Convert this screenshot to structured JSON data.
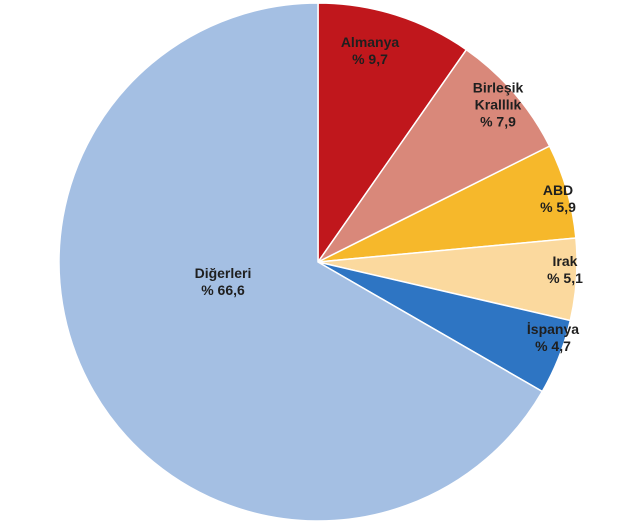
{
  "chart_data": {
    "type": "pie",
    "start_angle_deg": 0,
    "direction": "clockwise",
    "slices": [
      {
        "label": "Almanya",
        "value_label": "% 9,7",
        "value": 9.7,
        "color": "#C0171C",
        "text_color": "#1F1F1F"
      },
      {
        "label": "Birleşik Kralllık",
        "value_label": "% 7,9",
        "value": 7.9,
        "color": "#D9887A",
        "text_color": "#1F1F1F"
      },
      {
        "label": "ABD",
        "value_label": "% 5,9",
        "value": 5.9,
        "color": "#F6B82B",
        "text_color": "#1F1F1F"
      },
      {
        "label": "Irak",
        "value_label": "% 5,1",
        "value": 5.1,
        "color": "#FBD99E",
        "text_color": "#1F1F1F"
      },
      {
        "label": "İspanya",
        "value_label": "% 4,7",
        "value": 4.7,
        "color": "#2E75C3",
        "text_color": "#1F1F1F"
      },
      {
        "label": "Diğerleri",
        "value_label": "% 66,6",
        "value": 66.6,
        "color": "#A4BFE3",
        "text_color": "#1F1F1F"
      }
    ]
  }
}
